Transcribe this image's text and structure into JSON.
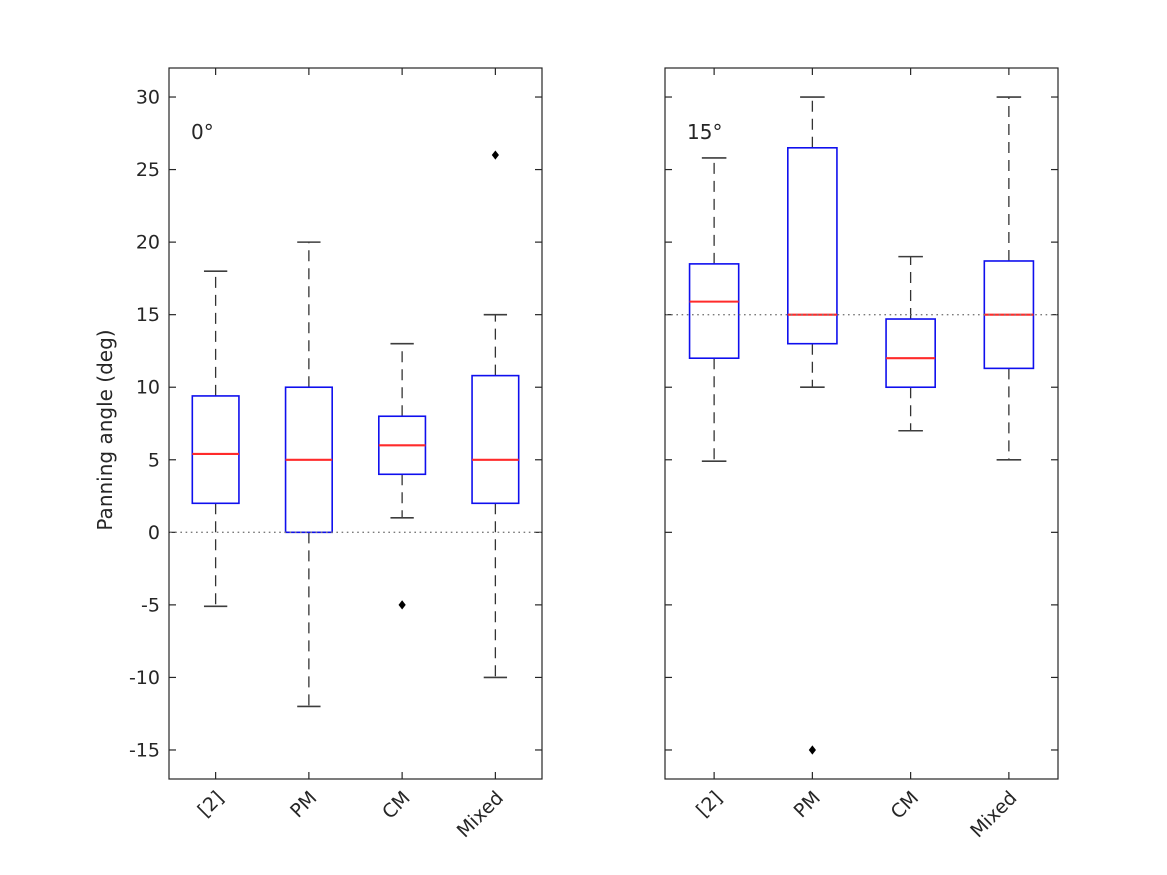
{
  "chart_data": {
    "type": "boxplot",
    "title": "",
    "ylabel": "Panning angle (deg)",
    "ylim": [
      -17,
      32
    ],
    "yticks": [
      -15,
      -10,
      -5,
      0,
      5,
      10,
      15,
      20,
      25,
      30
    ],
    "grid": false,
    "legend": null,
    "categories": [
      "[2]",
      "PM",
      "CM",
      "Mixed"
    ],
    "panels": [
      {
        "label": "0°",
        "reference_line": 0,
        "boxes": [
          {
            "category": "[2]",
            "whisker_low": -5.1,
            "q1": 2,
            "median": 5.4,
            "q3": 9.4,
            "whisker_high": 18,
            "outliers": []
          },
          {
            "category": "PM",
            "whisker_low": -12,
            "q1": 0,
            "median": 5,
            "q3": 10,
            "whisker_high": 20,
            "outliers": []
          },
          {
            "category": "CM",
            "whisker_low": 1,
            "q1": 4,
            "median": 6,
            "q3": 8,
            "whisker_high": 13,
            "outliers": [
              -5
            ]
          },
          {
            "category": "Mixed",
            "whisker_low": -10,
            "q1": 2,
            "median": 5,
            "q3": 10.8,
            "whisker_high": 15,
            "outliers": [
              26
            ]
          }
        ]
      },
      {
        "label": "15°",
        "reference_line": 15,
        "boxes": [
          {
            "category": "[2]",
            "whisker_low": 4.9,
            "q1": 12,
            "median": 15.9,
            "q3": 18.5,
            "whisker_high": 25.8,
            "outliers": []
          },
          {
            "category": "PM",
            "whisker_low": 10,
            "q1": 13,
            "median": 15,
            "q3": 26.5,
            "whisker_high": 30,
            "outliers": [
              -15
            ]
          },
          {
            "category": "CM",
            "whisker_low": 7,
            "q1": 10,
            "median": 12,
            "q3": 14.7,
            "whisker_high": 19,
            "outliers": []
          },
          {
            "category": "Mixed",
            "whisker_low": 5,
            "q1": 11.3,
            "median": 15,
            "q3": 18.7,
            "whisker_high": 30,
            "outliers": []
          }
        ]
      }
    ],
    "colors": {
      "box": "#0f0fee",
      "median": "#ff2b2b",
      "whisker": "#333333",
      "cap": "#3d3d3d",
      "outlier": "#000000",
      "reference": "#7a7a7a",
      "axis": "#262626"
    }
  }
}
